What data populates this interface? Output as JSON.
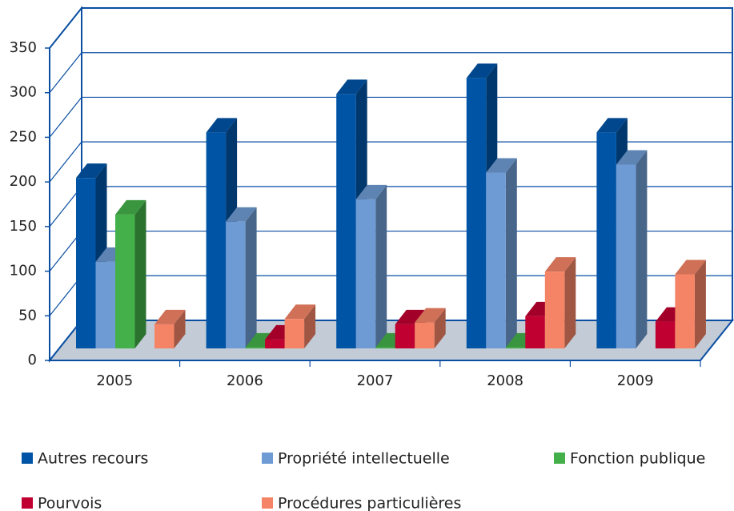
{
  "chart_data": {
    "type": "bar3d",
    "categories": [
      "2005",
      "2006",
      "2007",
      "2008",
      "2009"
    ],
    "series": [
      {
        "name": "Autres recours",
        "color": "#0054a6",
        "values": [
          191,
          242,
          285,
          303,
          242
        ]
      },
      {
        "name": "Propriété intellectuelle",
        "color": "#6f9bd4",
        "values": [
          97,
          142,
          167,
          197,
          206
        ]
      },
      {
        "name": "Fonction publique",
        "color": "#43b049",
        "values": [
          150,
          1,
          1,
          1,
          0
        ]
      },
      {
        "name": "Pourvois",
        "color": "#c00030",
        "values": [
          0,
          10,
          27,
          36,
          30
        ]
      },
      {
        "name": "Procédures particulières",
        "color": "#f58466",
        "values": [
          27,
          33,
          29,
          86,
          83
        ]
      }
    ],
    "ylim": [
      0,
      350
    ],
    "yticks": [
      0,
      50,
      100,
      150,
      200,
      250,
      300,
      350
    ],
    "grid": true,
    "legend": "bottom"
  }
}
